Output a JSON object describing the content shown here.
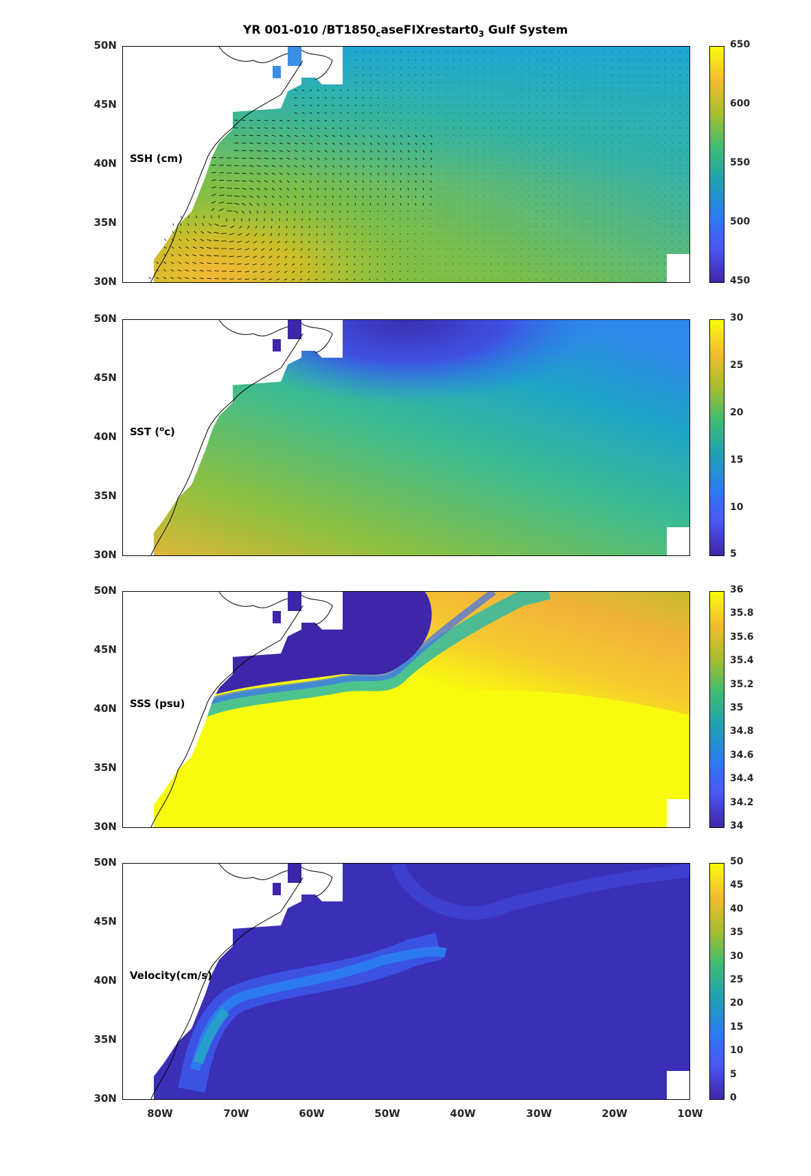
{
  "figure": {
    "title_main": "YR 001-010 /BT1850",
    "title_sub1": "c",
    "title_mid": "aseFIXrestart0",
    "title_sub2": "3",
    "title_end": " Gulf System"
  },
  "axes": {
    "lat_labels": [
      "50N",
      "45N",
      "40N",
      "35N",
      "30N"
    ],
    "lon_labels": [
      "80W",
      "70W",
      "60W",
      "50W",
      "40W",
      "30W",
      "20W",
      "10W"
    ]
  },
  "panels": [
    {
      "label": "SSH (cm)",
      "colorbar_ticks": [
        "650",
        "600",
        "550",
        "500",
        "450"
      ]
    },
    {
      "label": "SST (",
      "label_sup": "o",
      "label_end": "c)",
      "colorbar_ticks": [
        "30",
        "25",
        "20",
        "15",
        "10",
        "5"
      ]
    },
    {
      "label": "SSS (psu)",
      "colorbar_ticks": [
        "36",
        "35.8",
        "35.6",
        "35.4",
        "35.2",
        "35",
        "34.8",
        "34.6",
        "34.4",
        "34.2",
        "34"
      ]
    },
    {
      "label": "Velocity(cm/s)",
      "colorbar_ticks": [
        "50",
        "45",
        "40",
        "35",
        "30",
        "25",
        "20",
        "15",
        "10",
        "5",
        "0"
      ]
    }
  ],
  "chart_data": [
    {
      "type": "heatmap",
      "title": "SSH (cm)",
      "xlim": [
        -85,
        -10
      ],
      "ylim": [
        30,
        50
      ],
      "clim": [
        450,
        650
      ],
      "colormap": "parula",
      "xticks": [
        "80W",
        "70W",
        "60W",
        "50W",
        "40W",
        "30W",
        "20W",
        "10W"
      ],
      "yticks": [
        "30N",
        "35N",
        "40N",
        "45N",
        "50N"
      ],
      "summary_values": {
        "gulf_stream_core_max": 625,
        "subtropical_gyre": 585,
        "northeast_interior": 545,
        "labrador_shelf": 505
      },
      "overlay": "velocity vectors"
    },
    {
      "type": "heatmap",
      "title": "SST (oc)",
      "xlim": [
        -85,
        -10
      ],
      "ylim": [
        30,
        50
      ],
      "clim": [
        5,
        30
      ],
      "colormap": "parula",
      "summary_values": {
        "southwest_max": 25,
        "central_basin": 19,
        "northeast": 16,
        "labrador_min": 6
      }
    },
    {
      "type": "heatmap",
      "title": "SSS (psu)",
      "xlim": [
        -85,
        -10
      ],
      "ylim": [
        30,
        50
      ],
      "clim": [
        34,
        36
      ],
      "colormap": "parula",
      "summary_values": {
        "south_of_front": 36,
        "northeast": 35.6,
        "north_of_front": 34
      }
    },
    {
      "type": "heatmap",
      "title": "Velocity(cm/s)",
      "xlim": [
        -85,
        -10
      ],
      "ylim": [
        30,
        50
      ],
      "clim": [
        0,
        50
      ],
      "colormap": "parula",
      "summary_values": {
        "gulf_stream_max": 28,
        "north_atlantic_current": 12,
        "interior": 3
      }
    }
  ]
}
